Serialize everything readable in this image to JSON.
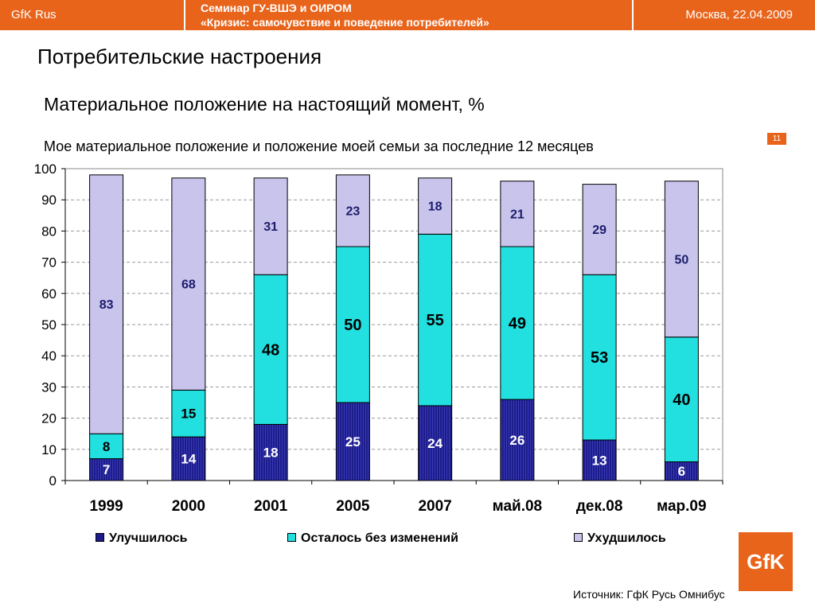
{
  "header": {
    "brand": "GfK Rus",
    "seminar_line1": "Семинар ГУ-ВШЭ и ОИРОМ",
    "seminar_line2": "«Кризис: самочувствие и поведение потребителей»",
    "date": "Москва, 22.04.2009"
  },
  "section_title": "Потребительские настроения",
  "page_number": "11",
  "logo_text": "GfK",
  "source": "Источник: ГфК Русь Омнибус",
  "colors": {
    "accent": "#e8641b",
    "improved": "#1c1c8c",
    "unchanged": "#22e0e0",
    "worsened": "#c8c4ec"
  },
  "chart_data": {
    "type": "bar",
    "stacked": true,
    "title": "Материальное положение на настоящий момент, %",
    "subtitle": "Мое материальное положение и положение моей семьи за последние 12 месяцев",
    "categories": [
      "1999",
      "2000",
      "2001",
      "2005",
      "2007",
      "май.08",
      "дек.08",
      "мар.09"
    ],
    "series": [
      {
        "name": "Улучшилось",
        "values": [
          7,
          14,
          18,
          25,
          24,
          26,
          13,
          6
        ]
      },
      {
        "name": "Осталось без изменений",
        "values": [
          8,
          15,
          48,
          50,
          55,
          49,
          53,
          40
        ]
      },
      {
        "name": "Ухудшилось",
        "values": [
          83,
          68,
          31,
          23,
          18,
          21,
          29,
          50
        ]
      }
    ],
    "ylim": [
      0,
      100
    ],
    "yticks": [
      0,
      10,
      20,
      30,
      40,
      50,
      60,
      70,
      80,
      90,
      100
    ],
    "grid": true,
    "legend": "bottom"
  }
}
